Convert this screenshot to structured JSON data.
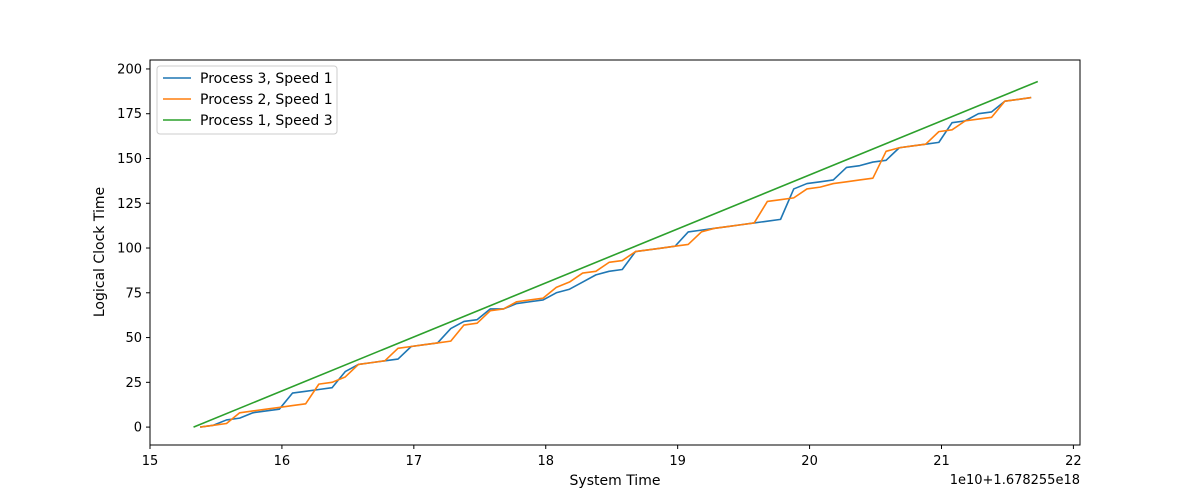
{
  "chart_data": {
    "type": "line",
    "title": "",
    "xlabel": "System Time",
    "ylabel": "Logical Clock Time",
    "x_offset_label": "1e10+1.678255e18",
    "xlim": [
      15.0,
      22.05
    ],
    "ylim": [
      -10,
      205
    ],
    "x_ticks": [
      15,
      16,
      17,
      18,
      19,
      20,
      21,
      22
    ],
    "y_ticks": [
      0,
      25,
      50,
      75,
      100,
      125,
      150,
      175,
      200
    ],
    "grid": false,
    "legend_position": "upper-left",
    "series": [
      {
        "name": "Process 3, Speed 1",
        "color": "#1f77b4",
        "points": [
          [
            15.38,
            0
          ],
          [
            15.48,
            1
          ],
          [
            15.58,
            4
          ],
          [
            15.68,
            5
          ],
          [
            15.78,
            8
          ],
          [
            15.88,
            9
          ],
          [
            15.98,
            10
          ],
          [
            16.08,
            19
          ],
          [
            16.18,
            20
          ],
          [
            16.28,
            21
          ],
          [
            16.38,
            22
          ],
          [
            16.48,
            31
          ],
          [
            16.58,
            35
          ],
          [
            16.68,
            36
          ],
          [
            16.78,
            37
          ],
          [
            16.88,
            38
          ],
          [
            16.98,
            45
          ],
          [
            17.08,
            46
          ],
          [
            17.18,
            47
          ],
          [
            17.28,
            55
          ],
          [
            17.38,
            59
          ],
          [
            17.48,
            60
          ],
          [
            17.58,
            66
          ],
          [
            17.68,
            66
          ],
          [
            17.78,
            69
          ],
          [
            17.88,
            70
          ],
          [
            17.98,
            71
          ],
          [
            18.08,
            75
          ],
          [
            18.18,
            77
          ],
          [
            18.28,
            81
          ],
          [
            18.38,
            85
          ],
          [
            18.48,
            87
          ],
          [
            18.58,
            88
          ],
          [
            18.68,
            98
          ],
          [
            18.78,
            99
          ],
          [
            18.88,
            100
          ],
          [
            18.98,
            101
          ],
          [
            19.08,
            109
          ],
          [
            19.18,
            110
          ],
          [
            19.28,
            111
          ],
          [
            19.38,
            112
          ],
          [
            19.48,
            113
          ],
          [
            19.58,
            114
          ],
          [
            19.68,
            115
          ],
          [
            19.78,
            116
          ],
          [
            19.88,
            133
          ],
          [
            19.98,
            136
          ],
          [
            20.08,
            137
          ],
          [
            20.18,
            138
          ],
          [
            20.28,
            145
          ],
          [
            20.38,
            146
          ],
          [
            20.48,
            148
          ],
          [
            20.58,
            149
          ],
          [
            20.68,
            156
          ],
          [
            20.78,
            157
          ],
          [
            20.88,
            158
          ],
          [
            20.98,
            159
          ],
          [
            21.08,
            170
          ],
          [
            21.18,
            171
          ],
          [
            21.28,
            175
          ],
          [
            21.38,
            176
          ],
          [
            21.48,
            182
          ],
          [
            21.58,
            183
          ],
          [
            21.68,
            184
          ]
        ]
      },
      {
        "name": "Process 2, Speed 1",
        "color": "#ff7f0e",
        "points": [
          [
            15.38,
            0
          ],
          [
            15.48,
            1
          ],
          [
            15.58,
            2
          ],
          [
            15.68,
            8
          ],
          [
            15.78,
            9
          ],
          [
            15.88,
            10
          ],
          [
            15.98,
            11
          ],
          [
            16.08,
            12
          ],
          [
            16.18,
            13
          ],
          [
            16.28,
            24
          ],
          [
            16.38,
            25
          ],
          [
            16.48,
            28
          ],
          [
            16.58,
            35
          ],
          [
            16.68,
            36
          ],
          [
            16.78,
            37
          ],
          [
            16.88,
            44
          ],
          [
            16.98,
            45
          ],
          [
            17.08,
            46
          ],
          [
            17.18,
            47
          ],
          [
            17.28,
            48
          ],
          [
            17.38,
            57
          ],
          [
            17.48,
            58
          ],
          [
            17.58,
            65
          ],
          [
            17.68,
            66
          ],
          [
            17.78,
            70
          ],
          [
            17.88,
            71
          ],
          [
            17.98,
            72
          ],
          [
            18.08,
            78
          ],
          [
            18.18,
            81
          ],
          [
            18.28,
            86
          ],
          [
            18.38,
            87
          ],
          [
            18.48,
            92
          ],
          [
            18.58,
            93
          ],
          [
            18.68,
            98
          ],
          [
            18.78,
            99
          ],
          [
            18.88,
            100
          ],
          [
            18.98,
            101
          ],
          [
            19.08,
            102
          ],
          [
            19.18,
            109
          ],
          [
            19.28,
            111
          ],
          [
            19.38,
            112
          ],
          [
            19.48,
            113
          ],
          [
            19.58,
            114
          ],
          [
            19.68,
            126
          ],
          [
            19.78,
            127
          ],
          [
            19.88,
            128
          ],
          [
            19.98,
            133
          ],
          [
            20.08,
            134
          ],
          [
            20.18,
            136
          ],
          [
            20.28,
            137
          ],
          [
            20.38,
            138
          ],
          [
            20.48,
            139
          ],
          [
            20.58,
            154
          ],
          [
            20.68,
            156
          ],
          [
            20.78,
            157
          ],
          [
            20.88,
            158
          ],
          [
            20.98,
            165
          ],
          [
            21.08,
            166
          ],
          [
            21.18,
            171
          ],
          [
            21.28,
            172
          ],
          [
            21.38,
            173
          ],
          [
            21.48,
            182
          ],
          [
            21.58,
            183
          ],
          [
            21.68,
            184
          ]
        ]
      },
      {
        "name": "Process 1, Speed 3",
        "color": "#2ca02c",
        "points": [
          [
            15.33,
            0
          ],
          [
            21.73,
            193
          ]
        ]
      }
    ]
  }
}
